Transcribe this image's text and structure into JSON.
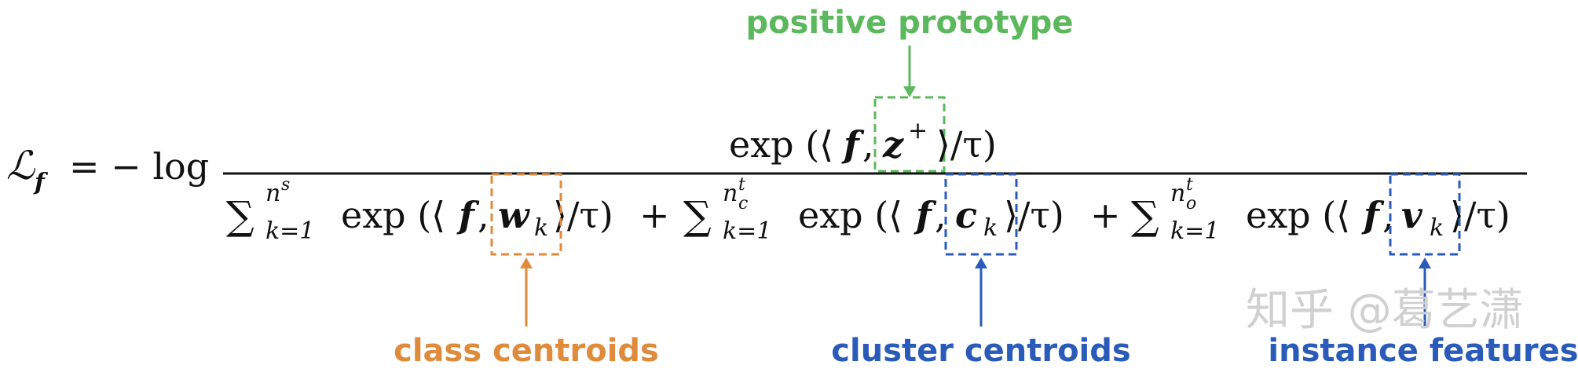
{
  "equation": {
    "lhs": "ℒ",
    "lhs_sub": "f",
    "equals_minus_log": "= − log",
    "numerator": {
      "exp_open": "exp (⟨",
      "f": "f",
      "comma": ",",
      "z": "z",
      "z_sup": "+",
      "close": "⟩/τ)"
    },
    "denominator": {
      "term1": {
        "sigma": "∑",
        "sup_n": "n",
        "sup_n_sup": "s",
        "sub": "k=1",
        "exp_open": "exp (⟨",
        "f": "f",
        "comma": ",",
        "vec": "w",
        "vec_sub": "k",
        "close": "⟩/τ)",
        "plus": "+"
      },
      "term2": {
        "sigma": "∑",
        "sup_n": "n",
        "sup_n_sup": "t",
        "sup_n_sub": "c",
        "sub": "k=1",
        "exp_open": "exp (⟨",
        "f": "f",
        "comma": ",",
        "vec": "c",
        "vec_sub": "k",
        "close": "⟩/τ)",
        "plus": "+"
      },
      "term3": {
        "sigma": "∑",
        "sup_n": "n",
        "sup_n_sup": "t",
        "sup_n_sub": "o",
        "sub": "k=1",
        "exp_open": "exp (⟨",
        "f": "f",
        "comma": ",",
        "vec": "v",
        "vec_sub": "k",
        "close": "⟩/τ)"
      }
    }
  },
  "annotations": {
    "positive": {
      "text": "positive prototype",
      "color": "#5cb85c"
    },
    "class": {
      "text": "class centroids",
      "color": "#e08a3c"
    },
    "cluster": {
      "text": "cluster centroids",
      "color": "#2a5bb8"
    },
    "instance": {
      "text": "instance features",
      "color": "#2a5bb8"
    }
  },
  "watermark": "知乎 @葛艺潇"
}
